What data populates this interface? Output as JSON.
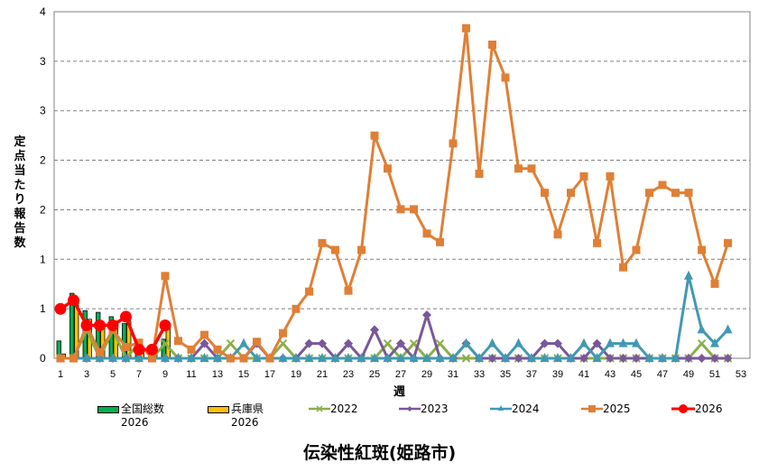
{
  "chart_data": {
    "type": "line",
    "title": "伝染性紅斑(姫路市)",
    "xlabel": "週",
    "ylabel": "定点当たり報告数",
    "ylim": [
      0,
      4
    ],
    "yticks": [
      0,
      0.571,
      1.143,
      1.714,
      2.286,
      2.857,
      3.429,
      4
    ],
    "ytick_labels": [
      "0",
      "1",
      "1",
      "2",
      "2",
      "3",
      "3",
      "4"
    ],
    "xlim": [
      1,
      53
    ],
    "xtick_labels": [
      "1",
      "3",
      "5",
      "7",
      "9",
      "11",
      "13",
      "15",
      "17",
      "19",
      "21",
      "23",
      "25",
      "27",
      "29",
      "31",
      "33",
      "35",
      "37",
      "39",
      "41",
      "43",
      "45",
      "47",
      "49",
      "51",
      "53"
    ],
    "grid": "horizontal dashed",
    "legend_position": "bottom",
    "bar_series": [
      {
        "name": "全国総数 2026",
        "color": "#00B050",
        "weeks": [
          1,
          2,
          3,
          4,
          5,
          6,
          7,
          8,
          9
        ],
        "values": [
          0.2,
          0.75,
          0.55,
          0.53,
          0.48,
          0.4,
          0.05,
          0.12,
          0.22
        ]
      },
      {
        "name": "兵庫県 2026",
        "color": "#FFC000",
        "weeks": [
          1,
          2,
          3,
          4,
          5,
          6,
          7,
          8,
          9
        ],
        "values": [
          0.05,
          0.68,
          0.45,
          0.37,
          0.43,
          0.43,
          0.1,
          0.07,
          0.37
        ]
      }
    ],
    "series": [
      {
        "name": "2022",
        "color": "#8AAE4A",
        "marker": "x",
        "values": [
          0,
          0,
          0.33,
          0,
          0.33,
          0,
          0.17,
          0,
          0.17,
          0,
          0,
          0,
          0,
          0.17,
          0,
          0,
          0,
          0.17,
          0,
          0,
          0,
          0,
          0,
          0,
          0,
          0.17,
          0,
          0.17,
          0,
          0.17,
          0,
          0,
          0,
          0,
          0,
          0,
          0,
          0,
          0,
          0,
          0,
          0,
          0,
          0,
          0,
          0,
          0,
          0,
          0,
          0.17,
          0,
          0
        ]
      },
      {
        "name": "2023",
        "color": "#7A5799",
        "marker": "diamond",
        "values": [
          0,
          0,
          0,
          0,
          0,
          0,
          0,
          0,
          0,
          0,
          0,
          0.17,
          0,
          0,
          0,
          0.17,
          0,
          0,
          0,
          0.17,
          0.17,
          0,
          0.17,
          0,
          0.33,
          0,
          0.17,
          0,
          0.5,
          0,
          0,
          0.17,
          0,
          0,
          0,
          0,
          0,
          0.17,
          0.17,
          0,
          0,
          0.17,
          0,
          0,
          0,
          0,
          0,
          0,
          0,
          0,
          0,
          0
        ]
      },
      {
        "name": "2024",
        "color": "#4099B2",
        "marker": "triangle",
        "values": [
          0,
          0,
          0,
          0,
          0,
          0,
          0,
          0,
          0,
          0,
          0,
          0,
          0,
          0,
          0.17,
          0,
          0,
          0,
          0,
          0,
          0,
          0,
          0,
          0,
          0,
          0,
          0,
          0,
          0,
          0,
          0,
          0.17,
          0,
          0.17,
          0,
          0.17,
          0,
          0,
          0,
          0,
          0.17,
          0,
          0.17,
          0.17,
          0.17,
          0,
          0,
          0,
          0.95,
          0.33,
          0.17,
          0.33
        ]
      },
      {
        "name": "2025",
        "color": "#E07F35",
        "marker": "square",
        "values": [
          0,
          0,
          0.38,
          0.07,
          0.33,
          0.13,
          0.18,
          0,
          0.95,
          0.2,
          0.1,
          0.27,
          0.1,
          0,
          0,
          0.19,
          0,
          0.29,
          0.57,
          0.77,
          1.33,
          1.25,
          0.78,
          1.25,
          2.57,
          2.19,
          1.72,
          1.72,
          1.44,
          1.34,
          2.48,
          3.81,
          2.13,
          3.62,
          3.24,
          2.19,
          2.19,
          1.91,
          1.43,
          1.91,
          2.1,
          1.33,
          2.1,
          1.05,
          1.25,
          1.91,
          2.0,
          1.91,
          1.91,
          1.25,
          0.86,
          1.33
        ]
      },
      {
        "name": "2026",
        "color": "#FF0000",
        "marker": "circle",
        "values": [
          0.57,
          0.67,
          0.38,
          0.38,
          0.38,
          0.48,
          0.1,
          0.1,
          0.38
        ]
      }
    ]
  },
  "legend": {
    "items": [
      {
        "label_line1": "全国総数",
        "label_line2": "2026"
      },
      {
        "label_line1": "兵庫県",
        "label_line2": "2026"
      },
      {
        "label_line1": "2022"
      },
      {
        "label_line1": "2023"
      },
      {
        "label_line1": "2024"
      },
      {
        "label_line1": "2025"
      },
      {
        "label_line1": "2026"
      }
    ]
  },
  "axis": {
    "ylabel": "定点当たり報告数",
    "xlabel": "週"
  },
  "title": "伝染性紅斑(姫路市)"
}
